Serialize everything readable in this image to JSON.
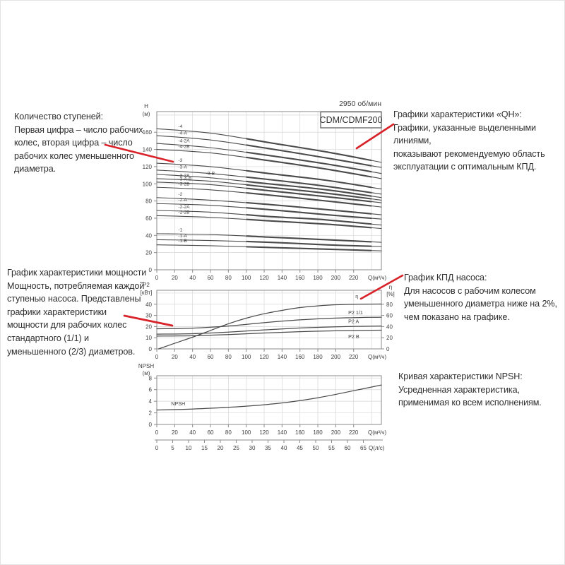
{
  "colors": {
    "red": "#d8232a",
    "curve": "#4a4a4a",
    "grid": "#d6d6d6",
    "frame": "#8a8a8a",
    "tick_text": "#3f3f3f",
    "text": "#2f2f2f"
  },
  "header": {
    "rpm": "2950 об/мин",
    "model": "CDM/CDMF200"
  },
  "annotations": {
    "stages": "Количество ступеней:\nПервая цифра – число рабочих\nколес, вторая цифра – число\nрабочих колес уменьшенного\nдиаметра.",
    "qh": "Графики характеристики «QH»:\nГрафики, указанные выделенными линиями,\nпоказывают рекомендуемую область\nэксплуатации с оптимальным КПД.",
    "power": "График характеристики мощности\nМощность, потребляемая каждой\nступенью насоса. Представлены\nграфики характеристики\nмощности для рабочих колес\nстандартного (1/1) и\nуменьшенного (2/3) диаметров.",
    "efficiency": "График КПД насоса:\nДля насосов с рабочим колесом\nуменьшенного диаметра ниже на 2%,\nчем показано на графике.",
    "npsh": "Кривая характеристики NPSH:\nУсредненная характеристика,\nприменимая ко всем исполнениям."
  },
  "chart_data": [
    {
      "id": "qh",
      "type": "line",
      "title": "CDM/CDMF200",
      "rpm": "2950 об/мин",
      "xlabel": "Q(м³/ч)",
      "ylabel": [
        "H",
        "(м)"
      ],
      "xlim": [
        0,
        251
      ],
      "ylim": [
        0,
        184
      ],
      "x_ticks": [
        0,
        20,
        40,
        60,
        80,
        100,
        120,
        140,
        160,
        180,
        200,
        220
      ],
      "y_ticks": [
        0,
        20,
        40,
        60,
        80,
        100,
        120,
        140,
        160
      ],
      "grid_extra_x": [
        240
      ],
      "grid_extra_y": [
        180
      ],
      "x_q": [
        0,
        60,
        125,
        190,
        251
      ],
      "bold_range_q": [
        100,
        240
      ],
      "series": [
        {
          "label": "-4",
          "h": [
            164,
            159,
            148,
            137,
            125
          ]
        },
        {
          "label": "-4-A",
          "h": [
            156,
            151,
            141,
            130,
            119
          ]
        },
        {
          "label": "-4-2A",
          "h": [
            147,
            142,
            133,
            123,
            112
          ]
        },
        {
          "label": "-4-2B",
          "h": [
            140,
            136,
            127,
            117,
            106
          ]
        },
        {
          "label": "-3",
          "h": [
            124,
            120,
            112,
            104,
            94
          ]
        },
        {
          "label": "-3-A",
          "h": [
            116,
            112,
            105,
            97,
            88
          ]
        },
        {
          "label": "-3-B",
          "h": [
            111,
            107,
            100,
            93,
            84
          ],
          "label_q": 55
        },
        {
          "label": "-3-2A",
          "h": [
            106,
            103,
            96,
            89,
            81
          ]
        },
        {
          "label": "-3-A-B",
          "h": [
            102,
            99,
            92,
            85,
            78
          ]
        },
        {
          "label": "-3-2B",
          "h": [
            96,
            93,
            87,
            80,
            73
          ]
        },
        {
          "label": "-2",
          "h": [
            84,
            81,
            76,
            70,
            64
          ]
        },
        {
          "label": "-2-A",
          "h": [
            77,
            75,
            70,
            64,
            59
          ]
        },
        {
          "label": "-2-2A",
          "h": [
            69,
            67,
            62,
            58,
            52
          ]
        },
        {
          "label": "-2-2B",
          "h": [
            63,
            61,
            57,
            53,
            48
          ]
        },
        {
          "label": "-1",
          "h": [
            42,
            41,
            38,
            35,
            32
          ]
        },
        {
          "label": "-1-A",
          "h": [
            35,
            34,
            32,
            29,
            27
          ]
        },
        {
          "label": "-1-B",
          "h": [
            29,
            28,
            26,
            24,
            22
          ]
        }
      ]
    },
    {
      "id": "p2",
      "type": "line",
      "xlabel": "Q(м³/ч)",
      "ylabel": [
        "P2",
        "[кВт]"
      ],
      "y2label": [
        "η",
        "[%]"
      ],
      "xlim": [
        0,
        251
      ],
      "ylim": [
        0,
        52.5
      ],
      "y2lim": [
        0,
        105
      ],
      "x_ticks": [
        0,
        20,
        40,
        60,
        80,
        100,
        120,
        140,
        160,
        180,
        200,
        220
      ],
      "y_ticks": [
        0,
        10,
        20,
        30,
        40
      ],
      "y2_ticks": [
        0,
        20,
        40,
        60,
        80
      ],
      "grid_extra_x": [
        240
      ],
      "grid_extra_y": [
        50
      ],
      "series": [
        {
          "label": "η",
          "axis": "y2",
          "label_q": 222,
          "dy": -9,
          "points": [
            [
              2,
              0
            ],
            [
              20,
              10
            ],
            [
              40,
              21
            ],
            [
              60,
              33
            ],
            [
              80,
              45
            ],
            [
              100,
              55
            ],
            [
              120,
              63
            ],
            [
              140,
              69
            ],
            [
              160,
              74
            ],
            [
              180,
              77
            ],
            [
              200,
              79
            ],
            [
              225,
              80
            ],
            [
              251,
              80.3
            ]
          ]
        },
        {
          "label": "P2 1/1",
          "label_q": 214,
          "dy": -5,
          "points": [
            [
              0,
              18
            ],
            [
              40,
              18.6
            ],
            [
              80,
              20.5
            ],
            [
              120,
              23.5
            ],
            [
              160,
              26
            ],
            [
              200,
              27.6
            ],
            [
              251,
              28.4
            ]
          ]
        },
        {
          "label": "P2 A",
          "label_q": 214,
          "dy": -5,
          "points": [
            [
              0,
              13.2
            ],
            [
              40,
              13.6
            ],
            [
              80,
              15
            ],
            [
              120,
              17
            ],
            [
              160,
              18.7
            ],
            [
              200,
              19.8
            ],
            [
              251,
              20.5
            ]
          ]
        },
        {
          "label": "P2 B",
          "label_q": 214,
          "dy": 11,
          "points": [
            [
              0,
              11.5
            ],
            [
              40,
              11.8
            ],
            [
              80,
              12.8
            ],
            [
              120,
              14.2
            ],
            [
              160,
              15.4
            ],
            [
              200,
              16.2
            ],
            [
              251,
              16.8
            ]
          ]
        }
      ]
    },
    {
      "id": "npsh",
      "type": "line",
      "xlabel": "Q(м³/ч)",
      "ylabel": [
        "NPSH",
        "(м)"
      ],
      "xlim": [
        0,
        251
      ],
      "ylim": [
        0,
        8.4
      ],
      "x_ticks": [
        0,
        20,
        40,
        60,
        80,
        100,
        120,
        140,
        160,
        180,
        200,
        220
      ],
      "y_ticks": [
        0,
        2,
        4,
        6,
        8
      ],
      "grid_extra_x": [
        240
      ],
      "series": [
        {
          "label": "NPSH",
          "label_q": 16,
          "dy": -6,
          "points": [
            [
              0,
              2.5
            ],
            [
              30,
              2.6
            ],
            [
              60,
              2.8
            ],
            [
              90,
              3.05
            ],
            [
              120,
              3.4
            ],
            [
              150,
              3.9
            ],
            [
              180,
              4.6
            ],
            [
              210,
              5.5
            ],
            [
              251,
              6.8
            ]
          ]
        }
      ],
      "secondary_x": {
        "label": "Q(л/с)",
        "ticks": [
          0,
          5,
          10,
          15,
          20,
          25,
          30,
          35,
          40,
          45,
          50,
          55,
          60,
          65
        ]
      }
    }
  ]
}
